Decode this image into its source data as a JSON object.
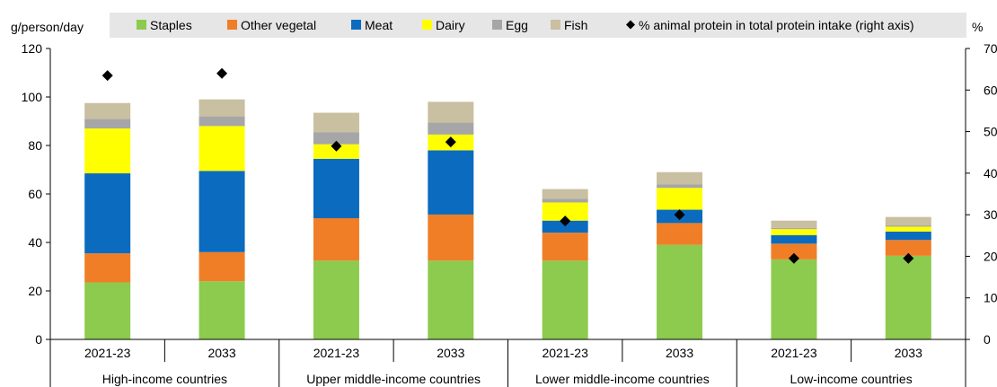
{
  "chart_data": {
    "type": "bar",
    "stacked": true,
    "ylabel_left": "g/person/day",
    "ylabel_right": "%",
    "ylim": [
      0,
      120
    ],
    "yticks": [
      0,
      20,
      40,
      60,
      80,
      100,
      120
    ],
    "ylim_right": [
      0,
      70
    ],
    "yticks_right": [
      0,
      10,
      20,
      30,
      40,
      50,
      60,
      70
    ],
    "grid": false,
    "legend_position": "top",
    "groups": [
      {
        "label": "High-income countries",
        "categories": [
          "2021-23",
          "2033"
        ]
      },
      {
        "label": "Upper middle-income countries",
        "categories": [
          "2021-23",
          "2033"
        ]
      },
      {
        "label": "Lower middle-income countries",
        "categories": [
          "2021-23",
          "2033"
        ]
      },
      {
        "label": "Low-income countries",
        "categories": [
          "2021-23",
          "2033"
        ]
      }
    ],
    "series": [
      {
        "name": "Staples",
        "color": "#8CCB4E",
        "values": [
          23.5,
          24,
          32.5,
          32.5,
          32.5,
          39,
          33,
          34.5
        ]
      },
      {
        "name": "Other vegetal",
        "color": "#F07E26",
        "values": [
          12,
          12,
          17.5,
          19,
          11.5,
          9,
          6.5,
          6.5
        ]
      },
      {
        "name": "Meat",
        "color": "#0B6BBF",
        "values": [
          33,
          33.5,
          24.5,
          26.5,
          5,
          5.5,
          3.5,
          3.5
        ]
      },
      {
        "name": "Dairy",
        "color": "#FFFF00",
        "values": [
          18.5,
          18.5,
          6,
          6.5,
          7.5,
          9,
          2.5,
          2
        ]
      },
      {
        "name": "Egg",
        "color": "#A6A6A6",
        "values": [
          4,
          4,
          5,
          5,
          1.5,
          1.5,
          0.5,
          0.5
        ]
      },
      {
        "name": "Fish",
        "color": "#C9BFA1",
        "values": [
          6.5,
          7,
          8,
          8.5,
          4,
          5,
          3,
          3.5
        ]
      }
    ],
    "marker_series": {
      "name": "% animal protein in total protein intake (right axis)",
      "marker": "diamond",
      "color": "#000000",
      "values": [
        63.5,
        64,
        46.5,
        47.5,
        28.5,
        30,
        19.5,
        19.5
      ]
    }
  }
}
